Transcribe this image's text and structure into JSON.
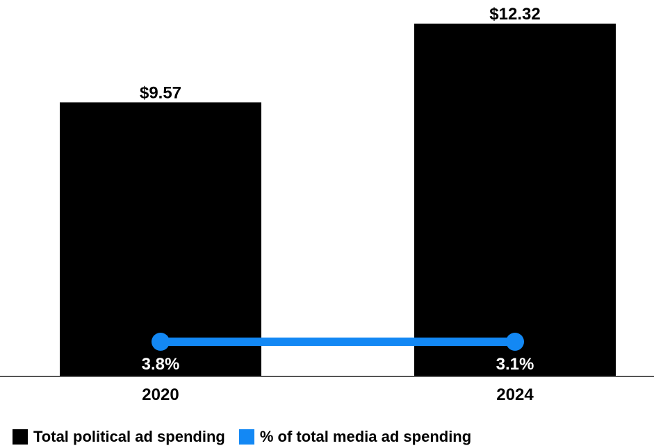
{
  "chart_data": {
    "type": "bar",
    "categories": [
      "2020",
      "2024"
    ],
    "series": [
      {
        "name": "Total political ad spending",
        "kind": "bar",
        "color": "#000000",
        "values": [
          9.57,
          12.32
        ],
        "labels": [
          "$9.57",
          "$12.32"
        ]
      },
      {
        "name": "% of total media ad spending",
        "kind": "line",
        "color": "#1388f4",
        "values": [
          3.8,
          3.1
        ],
        "labels": [
          "3.8%",
          "3.1%"
        ]
      }
    ],
    "title": "",
    "xlabel": "",
    "ylabel": "",
    "ylim": [
      0,
      12.32
    ],
    "legend_position": "bottom-left",
    "grid": false
  },
  "legend": {
    "items": [
      {
        "label": "Total political ad spending",
        "color": "#000000"
      },
      {
        "label": "% of total media ad spending",
        "color": "#1388f4"
      }
    ]
  }
}
